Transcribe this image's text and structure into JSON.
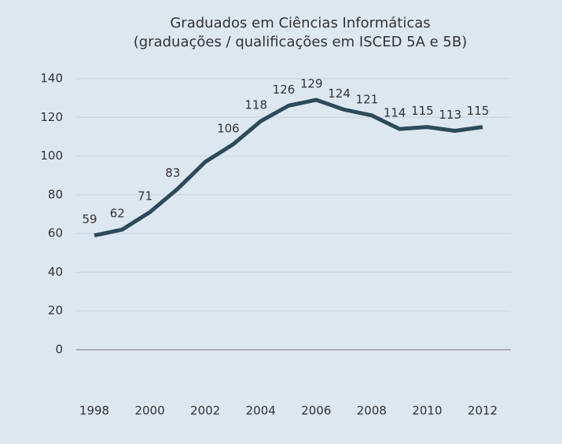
{
  "chart_data": {
    "type": "line",
    "title": "Graduados em Ciências Informáticas",
    "subtitle": "(graduações / qualificações em ISCED 5A e 5B)",
    "x": [
      1998,
      1999,
      2000,
      2001,
      2002,
      2003,
      2004,
      2005,
      2006,
      2007,
      2008,
      2009,
      2010,
      2011,
      2012
    ],
    "values": [
      59,
      62,
      71,
      83,
      97,
      106,
      118,
      126,
      129,
      124,
      121,
      114,
      115,
      113,
      115
    ],
    "value_labels": [
      "59",
      "62",
      "71",
      "83",
      null,
      "106",
      "118",
      "126",
      "129",
      "124",
      "121",
      "114",
      "115",
      "113",
      "115"
    ],
    "color": "#2d4a5a",
    "xlim": [
      1998,
      2012
    ],
    "xticks": [
      1998,
      2000,
      2002,
      2004,
      2006,
      2008,
      2010,
      2012
    ],
    "ylim": [
      0,
      140
    ],
    "yticks": [
      0,
      20,
      40,
      60,
      80,
      100,
      120,
      140
    ],
    "grid": true
  }
}
